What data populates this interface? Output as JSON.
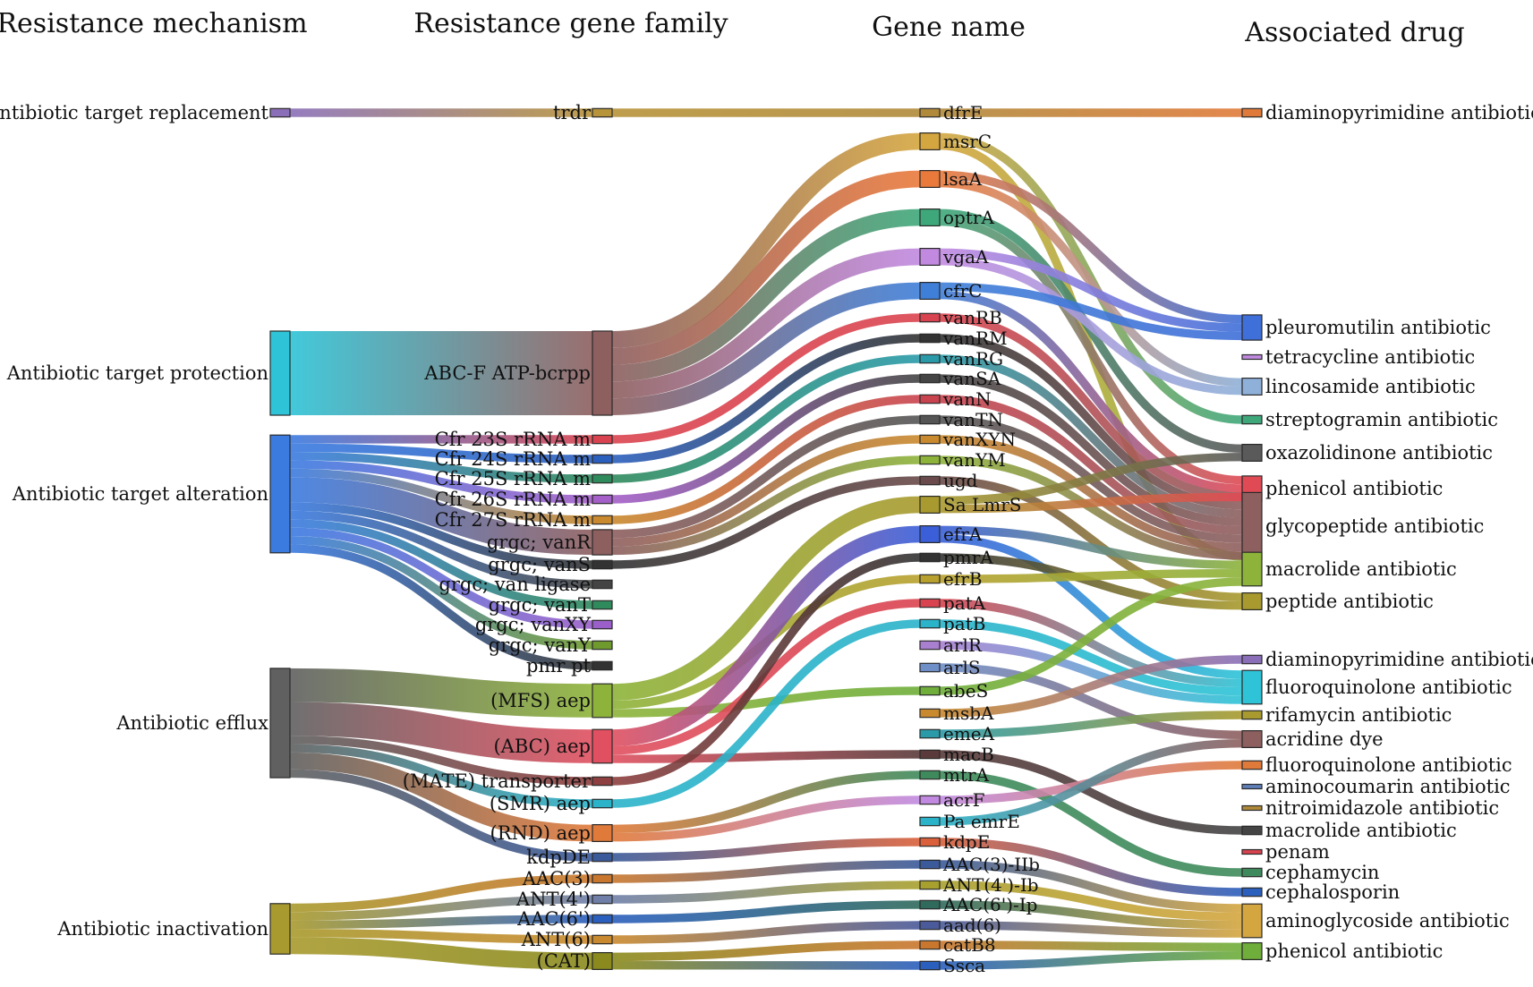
{
  "headers": {
    "mechanism": "Resistance mechanism",
    "family": "Resistance gene family",
    "gene": "Gene name",
    "drug": "Associated drug"
  },
  "mechanisms": [
    {
      "id": "m0",
      "label": "Antibiotic target replacement",
      "color": "#8a6fb8"
    },
    {
      "id": "m1",
      "label": "Antibiotic target protection",
      "color": "#2ec3d6"
    },
    {
      "id": "m2",
      "label": "Antibiotic target alteration",
      "color": "#3b7be0"
    },
    {
      "id": "m3",
      "label": "Antibiotic efflux",
      "color": "#606060"
    },
    {
      "id": "m4",
      "label": "Antibiotic inactivation",
      "color": "#a89a2e"
    }
  ],
  "families": [
    {
      "id": "f0",
      "label": "trdr",
      "color": "#b7933a"
    },
    {
      "id": "f1",
      "label": "ABC-F ATP-bcrpp",
      "color": "#8e5f5f"
    },
    {
      "id": "f2",
      "label": "Cfr 23S rRNA m",
      "color": "#d9434f"
    },
    {
      "id": "f3",
      "label": "Cfr 24S rRNA m",
      "color": "#2b5fbd"
    },
    {
      "id": "f4",
      "label": "Cfr 25S rRNA m",
      "color": "#2f8a5c"
    },
    {
      "id": "f5",
      "label": "Cfr 26S rRNA m",
      "color": "#a45fc8"
    },
    {
      "id": "f6",
      "label": "Cfr 27S rRNA m",
      "color": "#c9892e"
    },
    {
      "id": "f7",
      "label": "grgc; vanR",
      "color": "#8e5f5f"
    },
    {
      "id": "f8",
      "label": "grgc; vanS",
      "color": "#333333"
    },
    {
      "id": "f9",
      "label": "grgc; van ligase",
      "color": "#444444"
    },
    {
      "id": "f10",
      "label": "grgc; vanT",
      "color": "#2f8a5c"
    },
    {
      "id": "f11",
      "label": "grgc; vanXY",
      "color": "#9a5fc8"
    },
    {
      "id": "f12",
      "label": "grgc; vanY",
      "color": "#6f9a2e"
    },
    {
      "id": "f13",
      "label": "pmr pt",
      "color": "#333333"
    },
    {
      "id": "f14",
      "label": "(MFS) aep",
      "color": "#8db33a"
    },
    {
      "id": "f15",
      "label": "(ABC) aep",
      "color": "#e05060"
    },
    {
      "id": "f16",
      "label": "(MATE) transporter",
      "color": "#8e3f3f"
    },
    {
      "id": "f17",
      "label": "(SMR) aep",
      "color": "#2ab3c9"
    },
    {
      "id": "f18",
      "label": "(RND) aep",
      "color": "#e07a3a"
    },
    {
      "id": "f19",
      "label": "kdpDE",
      "color": "#3a5a9a"
    },
    {
      "id": "f20",
      "label": "AAC(3)",
      "color": "#c9772e"
    },
    {
      "id": "f21",
      "label": "ANT(4')",
      "color": "#6f7fa8"
    },
    {
      "id": "f22",
      "label": "AAC(6')",
      "color": "#2b5fbd"
    },
    {
      "id": "f23",
      "label": "ANT(6)",
      "color": "#c9892e"
    },
    {
      "id": "f24",
      "label": "(CAT)",
      "color": "#8a8a1e"
    }
  ],
  "genes": [
    {
      "id": "g0",
      "label": "dfrE",
      "color": "#b08a3a"
    },
    {
      "id": "g1",
      "label": "msrC",
      "color": "#d4a640"
    },
    {
      "id": "g2",
      "label": "lsaA",
      "color": "#ea7a3c"
    },
    {
      "id": "g3",
      "label": "optrA",
      "color": "#3fa87a"
    },
    {
      "id": "g4",
      "label": "vgaA",
      "color": "#c18ae0"
    },
    {
      "id": "g5",
      "label": "cfrC",
      "color": "#3f7fd8"
    },
    {
      "id": "g6",
      "label": "vanRB",
      "color": "#d9434f"
    },
    {
      "id": "g7",
      "label": "vanRM",
      "color": "#333333"
    },
    {
      "id": "g8",
      "label": "vanRG",
      "color": "#2a9aa8"
    },
    {
      "id": "g9",
      "label": "vanSA",
      "color": "#444444"
    },
    {
      "id": "g10",
      "label": "vanN",
      "color": "#c9434f"
    },
    {
      "id": "g11",
      "label": "vanTN",
      "color": "#555555"
    },
    {
      "id": "g12",
      "label": "vanXYN",
      "color": "#c9892e"
    },
    {
      "id": "g13",
      "label": "vanYM",
      "color": "#8db33a"
    },
    {
      "id": "g14",
      "label": "ugd",
      "color": "#6a4a4a"
    },
    {
      "id": "g15",
      "label": "Sa LmrS",
      "color": "#a89a2e"
    },
    {
      "id": "g16",
      "label": "efrA",
      "color": "#3a5fd8"
    },
    {
      "id": "g17",
      "label": "pmrA",
      "color": "#333333"
    },
    {
      "id": "g18",
      "label": "efrB",
      "color": "#b8a02e"
    },
    {
      "id": "g19",
      "label": "patA",
      "color": "#d9434f"
    },
    {
      "id": "g20",
      "label": "patB",
      "color": "#2ab3c9"
    },
    {
      "id": "g21",
      "label": "arlR",
      "color": "#a97fd0"
    },
    {
      "id": "g22",
      "label": "arlS",
      "color": "#6f8fc8"
    },
    {
      "id": "g23",
      "label": "abeS",
      "color": "#6fae3a"
    },
    {
      "id": "g24",
      "label": "msbA",
      "color": "#c9892e"
    },
    {
      "id": "g25",
      "label": "emeA",
      "color": "#2a9aa8"
    },
    {
      "id": "g26",
      "label": "macB",
      "color": "#5a3a3a"
    },
    {
      "id": "g27",
      "label": "mtrA",
      "color": "#3f8a5c"
    },
    {
      "id": "g28",
      "label": "acrF",
      "color": "#c18ae0"
    },
    {
      "id": "g29",
      "label": "Pa emrE",
      "color": "#2ab3c9"
    },
    {
      "id": "g30",
      "label": "kdpE",
      "color": "#d9603a"
    },
    {
      "id": "g31",
      "label": "AAC(3)-IIb",
      "color": "#3a5a9a"
    },
    {
      "id": "g32",
      "label": "ANT(4')-Ib",
      "color": "#a8a02e"
    },
    {
      "id": "g33",
      "label": "AAC(6')-Ip",
      "color": "#2f6a5c"
    },
    {
      "id": "g34",
      "label": "aad(6)",
      "color": "#4a5a9a"
    },
    {
      "id": "g35",
      "label": "catB8",
      "color": "#c9772e"
    },
    {
      "id": "g36",
      "label": "Ssca",
      "color": "#2b5fbd"
    }
  ],
  "drugs": [
    {
      "id": "d0",
      "label": "diaminopyrimidine antibiotic",
      "color": "#e07a3a"
    },
    {
      "id": "d1",
      "label": "pleuromutilin antibiotic",
      "color": "#3f6fd8"
    },
    {
      "id": "d2",
      "label": "tetracycline antibiotic",
      "color": "#c18ae0"
    },
    {
      "id": "d3",
      "label": "lincosamide antibiotic",
      "color": "#8fb0d8"
    },
    {
      "id": "d4",
      "label": "streptogramin antibiotic",
      "color": "#3fa87a"
    },
    {
      "id": "d5",
      "label": "oxazolidinone antibiotic",
      "color": "#5a5a5a"
    },
    {
      "id": "d6",
      "label": "phenicol antibiotic",
      "color": "#e04a55"
    },
    {
      "id": "d7",
      "label": "glycopeptide antibiotic",
      "color": "#8e5f5f"
    },
    {
      "id": "d8",
      "label": "macrolide antibiotic",
      "color": "#8db33a"
    },
    {
      "id": "d9",
      "label": "peptide antibiotic",
      "color": "#a89a2e"
    },
    {
      "id": "d10",
      "label": "diaminopyrimidine antibiotic",
      "color": "#8a6fb8"
    },
    {
      "id": "d11",
      "label": "fluoroquinolone antibiotic",
      "color": "#2ec3d6"
    },
    {
      "id": "d12",
      "label": "rifamycin antibiotic",
      "color": "#a89a2e"
    },
    {
      "id": "d13",
      "label": "acridine dye",
      "color": "#8e5f5f"
    },
    {
      "id": "d14",
      "label": "fluoroquinolone antibiotic",
      "color": "#e07a3a"
    },
    {
      "id": "d15",
      "label": "aminocoumarin antibiotic",
      "color": "#5f7fb8"
    },
    {
      "id": "d16",
      "label": "nitroimidazole antibiotic",
      "color": "#b08a3a"
    },
    {
      "id": "d17",
      "label": "macrolide antibiotic",
      "color": "#444444"
    },
    {
      "id": "d18",
      "label": "penam",
      "color": "#d9434f"
    },
    {
      "id": "d19",
      "label": "cephamycin",
      "color": "#3f8a5c"
    },
    {
      "id": "d20",
      "label": "cephalosporin",
      "color": "#2b5fbd"
    },
    {
      "id": "d21",
      "label": "aminoglycoside antibiotic",
      "color": "#d4a640"
    },
    {
      "id": "d22",
      "label": "phenicol antibiotic",
      "color": "#6fae3a"
    }
  ],
  "links": [
    [
      "m0",
      "f0",
      1
    ],
    [
      "m1",
      "f1",
      10
    ],
    [
      "m2",
      "f2",
      1
    ],
    [
      "m2",
      "f3",
      1
    ],
    [
      "m2",
      "f4",
      1
    ],
    [
      "m2",
      "f5",
      1
    ],
    [
      "m2",
      "f6",
      1
    ],
    [
      "m2",
      "f7",
      3
    ],
    [
      "m2",
      "f8",
      1
    ],
    [
      "m2",
      "f9",
      1
    ],
    [
      "m2",
      "f10",
      1
    ],
    [
      "m2",
      "f11",
      1
    ],
    [
      "m2",
      "f12",
      1
    ],
    [
      "m2",
      "f13",
      1
    ],
    [
      "m3",
      "f14",
      4
    ],
    [
      "m3",
      "f15",
      4
    ],
    [
      "m3",
      "f16",
      1
    ],
    [
      "m3",
      "f17",
      1
    ],
    [
      "m3",
      "f18",
      2
    ],
    [
      "m3",
      "f19",
      1
    ],
    [
      "m4",
      "f20",
      1
    ],
    [
      "m4",
      "f21",
      1
    ],
    [
      "m4",
      "f22",
      1
    ],
    [
      "m4",
      "f23",
      1
    ],
    [
      "m4",
      "f24",
      2
    ],
    [
      "f0",
      "g0",
      1
    ],
    [
      "f1",
      "g1",
      2
    ],
    [
      "f1",
      "g2",
      2
    ],
    [
      "f1",
      "g3",
      2
    ],
    [
      "f1",
      "g4",
      2
    ],
    [
      "f1",
      "g5",
      2
    ],
    [
      "f2",
      "g6",
      1
    ],
    [
      "f3",
      "g7",
      1
    ],
    [
      "f4",
      "g8",
      1
    ],
    [
      "f5",
      "g9",
      1
    ],
    [
      "f6",
      "g10",
      1
    ],
    [
      "f7",
      "g11",
      1
    ],
    [
      "f7",
      "g12",
      1
    ],
    [
      "f7",
      "g13",
      1
    ],
    [
      "f8",
      "g14",
      1
    ],
    [
      "f14",
      "g15",
      2
    ],
    [
      "f14",
      "g18",
      1
    ],
    [
      "f14",
      "g23",
      1
    ],
    [
      "f15",
      "g16",
      2
    ],
    [
      "f15",
      "g19",
      1
    ],
    [
      "f15",
      "g26",
      1
    ],
    [
      "f16",
      "g17",
      1
    ],
    [
      "f17",
      "g20",
      1
    ],
    [
      "f18",
      "g28",
      1
    ],
    [
      "f18",
      "g27",
      1
    ],
    [
      "f19",
      "g30",
      1
    ],
    [
      "f20",
      "g31",
      1
    ],
    [
      "f21",
      "g32",
      1
    ],
    [
      "f22",
      "g33",
      1
    ],
    [
      "f23",
      "g34",
      1
    ],
    [
      "f24",
      "g35",
      1
    ],
    [
      "f24",
      "g36",
      1
    ],
    [
      "g0",
      "d0",
      1
    ],
    [
      "g1",
      "d8",
      1
    ],
    [
      "g1",
      "d4",
      1
    ],
    [
      "g2",
      "d1",
      1
    ],
    [
      "g2",
      "d3",
      1
    ],
    [
      "g3",
      "d5",
      1
    ],
    [
      "g3",
      "d6",
      1
    ],
    [
      "g4",
      "d1",
      1
    ],
    [
      "g4",
      "d3",
      1
    ],
    [
      "g5",
      "d6",
      1
    ],
    [
      "g5",
      "d1",
      1
    ],
    [
      "g6",
      "d7",
      1
    ],
    [
      "g7",
      "d7",
      1
    ],
    [
      "g8",
      "d7",
      1
    ],
    [
      "g9",
      "d7",
      1
    ],
    [
      "g10",
      "d7",
      1
    ],
    [
      "g11",
      "d7",
      1
    ],
    [
      "g12",
      "d7",
      1
    ],
    [
      "g13",
      "d7",
      1
    ],
    [
      "g14",
      "d9",
      1
    ],
    [
      "g15",
      "d5",
      1
    ],
    [
      "g15",
      "d6",
      1
    ],
    [
      "g16",
      "d8",
      1
    ],
    [
      "g16",
      "d11",
      1
    ],
    [
      "g17",
      "d9",
      1
    ],
    [
      "g18",
      "d8",
      1
    ],
    [
      "g19",
      "d11",
      1
    ],
    [
      "g20",
      "d11",
      1
    ],
    [
      "g21",
      "d11",
      1
    ],
    [
      "g22",
      "d13",
      1
    ],
    [
      "g23",
      "d8",
      1
    ],
    [
      "g24",
      "d10",
      1
    ],
    [
      "g25",
      "d12",
      1
    ],
    [
      "g26",
      "d17",
      1
    ],
    [
      "g27",
      "d19",
      1
    ],
    [
      "g28",
      "d14",
      1
    ],
    [
      "g29",
      "d13",
      1
    ],
    [
      "g30",
      "d20",
      1
    ],
    [
      "g31",
      "d21",
      1
    ],
    [
      "g32",
      "d21",
      1
    ],
    [
      "g33",
      "d21",
      1
    ],
    [
      "g34",
      "d21",
      1
    ],
    [
      "g35",
      "d22",
      1
    ],
    [
      "g36",
      "d22",
      1
    ]
  ]
}
